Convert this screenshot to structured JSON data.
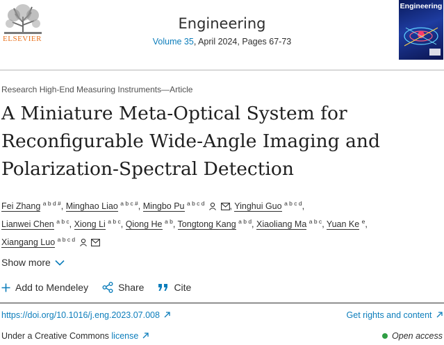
{
  "header": {
    "publisher": "ELSEVIER",
    "journal": "Engineering",
    "volume_link": "Volume 35",
    "volume_rest": ", April 2024, Pages 67-73",
    "cover_title": "Engineering"
  },
  "article": {
    "type": "Research High-End Measuring Instruments—Article",
    "title": "A Miniature Meta-Optical System for Reconfigurable Wide-Angle Imaging and Polarization-Spectral Detection"
  },
  "authors": [
    {
      "name": "Fei Zhang",
      "sup": "a b d #"
    },
    {
      "name": "Minghao Liao",
      "sup": "a b c #"
    },
    {
      "name": "Mingbo Pu",
      "sup": "a b c d"
    },
    {
      "name": "Yinghui Guo",
      "sup": "a b c d"
    },
    {
      "name": "Lianwei Chen",
      "sup": "a b c"
    },
    {
      "name": "Xiong Li",
      "sup": "a b c"
    },
    {
      "name": "Qiong He",
      "sup": "a b"
    },
    {
      "name": "Tongtong Kang",
      "sup": "a b d"
    },
    {
      "name": "Xiaoliang Ma",
      "sup": "a b c"
    },
    {
      "name": "Yuan Ke",
      "sup": "e"
    },
    {
      "name": "Xiangang Luo",
      "sup": "a b c d"
    }
  ],
  "show_more": "Show more",
  "actions": {
    "mendeley": "Add to Mendeley",
    "share": "Share",
    "cite": "Cite"
  },
  "links": {
    "doi": "https://doi.org/10.1016/j.eng.2023.07.008",
    "rights": "Get rights and content",
    "license_prefix": "Under a Creative Commons",
    "license_link": "license",
    "open_access": "Open access"
  },
  "colors": {
    "link": "#0c7dbb",
    "elsevier_orange": "#e9711c",
    "open_access_dot": "#2f9e44"
  },
  "icons": [
    "elsevier-tree-logo",
    "person-icon",
    "envelope-icon",
    "plus-icon",
    "share-icon",
    "quote-icon",
    "chevron-down-icon",
    "arrow-northeast-icon"
  ]
}
